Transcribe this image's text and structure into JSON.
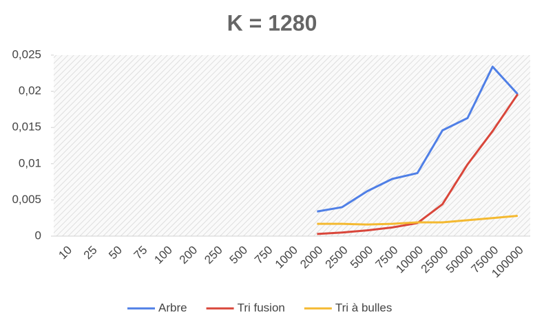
{
  "chart_data": {
    "type": "line",
    "title": "K = 1280",
    "categories": [
      "10",
      "25",
      "50",
      "75",
      "100",
      "200",
      "250",
      "500",
      "750",
      "1000",
      "2000",
      "2500",
      "5000",
      "7500",
      "10000",
      "25000",
      "50000",
      "75000",
      "100000"
    ],
    "series": [
      {
        "name": "Arbre",
        "color": "#4f7fe6",
        "values": [
          null,
          null,
          null,
          null,
          null,
          null,
          null,
          null,
          null,
          null,
          0.0034,
          0.004,
          0.0062,
          0.0079,
          0.0087,
          0.0146,
          0.0163,
          0.0234,
          0.0196
        ]
      },
      {
        "name": "Tri fusion",
        "color": "#d9463a",
        "values": [
          null,
          null,
          null,
          null,
          null,
          null,
          null,
          null,
          null,
          null,
          0.0003,
          0.0005,
          0.0008,
          0.0012,
          0.0018,
          0.0044,
          0.0099,
          0.0145,
          0.0196
        ]
      },
      {
        "name": "Tri à bulles",
        "color": "#f4b930",
        "values": [
          null,
          null,
          null,
          null,
          null,
          null,
          null,
          null,
          null,
          null,
          0.0017,
          0.0017,
          0.0016,
          0.0017,
          0.0019,
          0.0019,
          0.0022,
          0.0025,
          0.0028
        ]
      }
    ],
    "ylim": [
      0,
      0.025
    ],
    "yticks": [
      0,
      {
        "value": 0.005,
        "label": "0,005"
      },
      {
        "value": 0.01,
        "label": "0,01"
      },
      {
        "value": 0.015,
        "label": "0,015"
      },
      {
        "value": 0.02,
        "label": "0,02"
      },
      {
        "value": 0.025,
        "label": "0,025"
      }
    ],
    "grid": false,
    "legend": "bottom"
  }
}
